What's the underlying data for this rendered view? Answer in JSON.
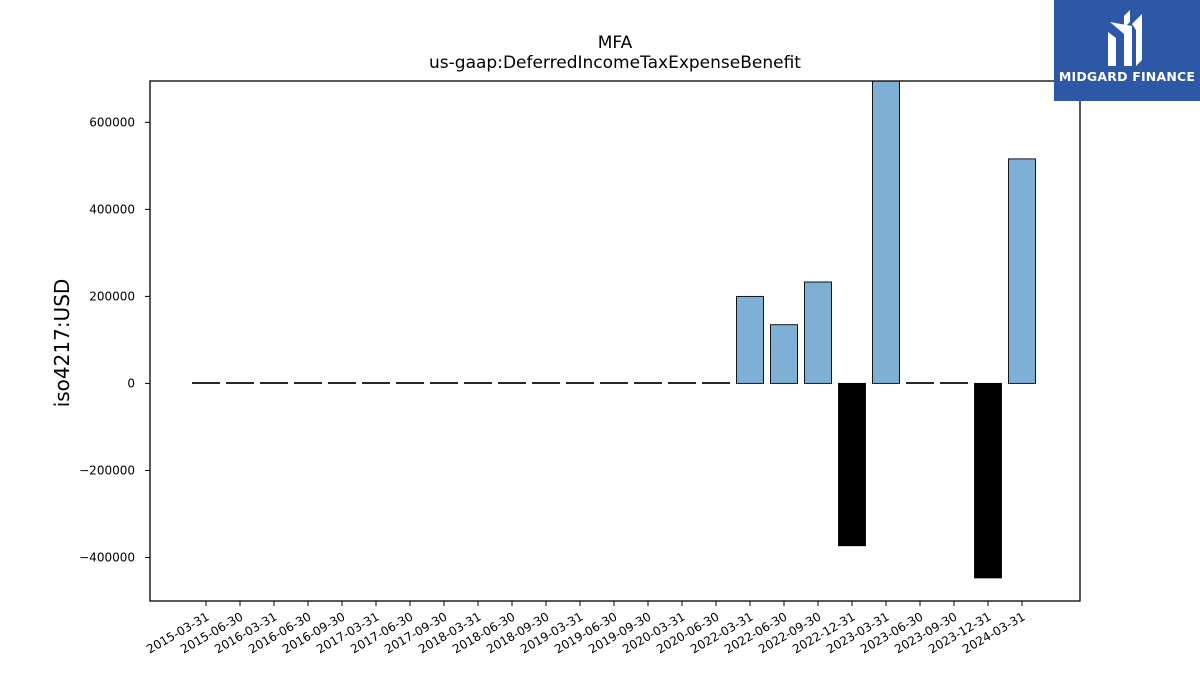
{
  "brand": {
    "name": "MIDGARD FINANCE",
    "bg_color": "#2c58a6"
  },
  "chart_data": {
    "type": "bar",
    "title": "MFA",
    "subtitle": "us-gaap:DeferredIncomeTaxExpenseBenefit",
    "xlabel": "",
    "ylabel": "iso4217:USD",
    "ylim": [
      -500000,
      695000
    ],
    "yticks": [
      -400000,
      -200000,
      0,
      200000,
      400000,
      600000
    ],
    "ytick_labels": [
      "−400000",
      "−200000",
      "0",
      "200000",
      "400000",
      "600000"
    ],
    "grid": false,
    "colors": {
      "positive": "#7eb0d5",
      "negative": "#000000",
      "edge": "#000000"
    },
    "categories": [
      "2015-03-31",
      "2015-06-30",
      "2016-03-31",
      "2016-06-30",
      "2016-09-30",
      "2017-03-31",
      "2017-06-30",
      "2017-09-30",
      "2018-03-31",
      "2018-06-30",
      "2018-09-30",
      "2019-03-31",
      "2019-06-30",
      "2019-09-30",
      "2020-03-31",
      "2020-06-30",
      "2022-03-31",
      "2022-06-30",
      "2022-09-30",
      "2022-12-31",
      "2023-03-31",
      "2023-06-30",
      "2023-09-30",
      "2023-12-31",
      "2024-03-31"
    ],
    "values": [
      0,
      0,
      0,
      0,
      0,
      0,
      0,
      0,
      0,
      0,
      0,
      0,
      0,
      0,
      0,
      0,
      200000,
      135000,
      233000,
      -373000,
      695000,
      0,
      0,
      -447000,
      516000
    ]
  }
}
